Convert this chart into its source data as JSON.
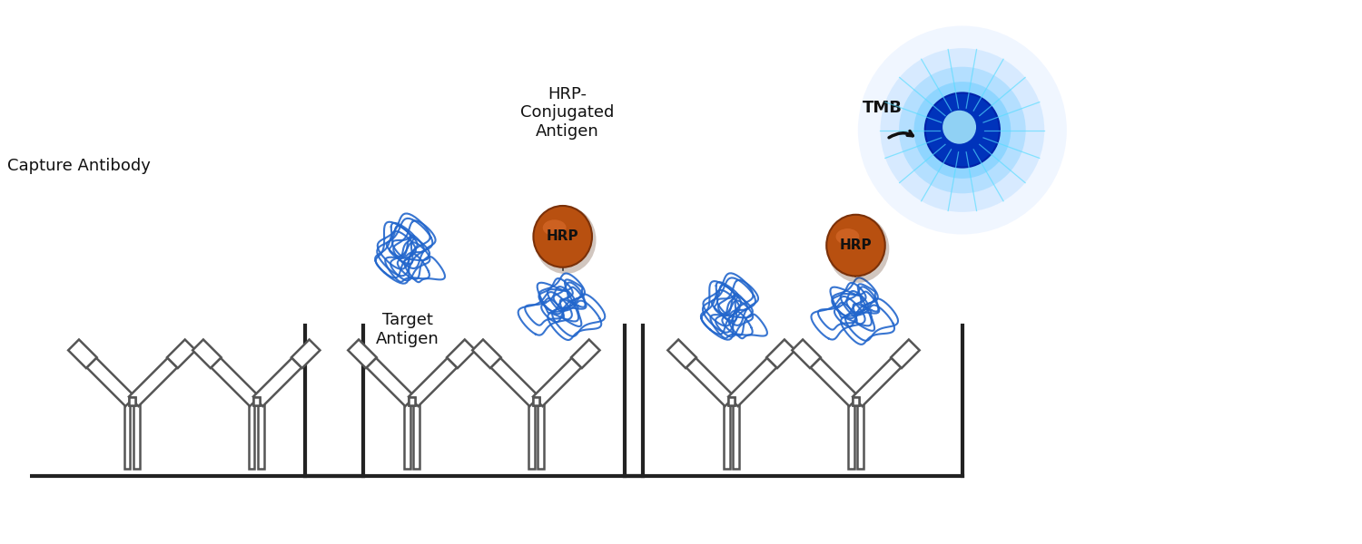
{
  "bg_color": "#ffffff",
  "fig_width": 15.0,
  "fig_height": 6.0,
  "dpi": 100,
  "ab_outline": "#555555",
  "ab_fill": "#ffffff",
  "ab_lw": 1.8,
  "antigen_color": "#2266cc",
  "antigen_lw": 1.5,
  "hrp_color": "#b85010",
  "hrp_edge": "#7a3008",
  "hrp_label": "HRP",
  "hrp_label_fontsize": 11,
  "tmb_label": "TMB",
  "tmb_label_fontsize": 13,
  "label_capture_antibody": "Capture Antibody",
  "label_target_antigen": "Target\nAntigen",
  "label_hrp_conjugated": "HRP-\nConjugated\nAntigen",
  "label_fontsize": 13,
  "label_color": "#111111",
  "plate_color": "#222222",
  "plate_lw": 3.0,
  "arrow_color": "#111111",
  "arrow_lw": 2.5
}
